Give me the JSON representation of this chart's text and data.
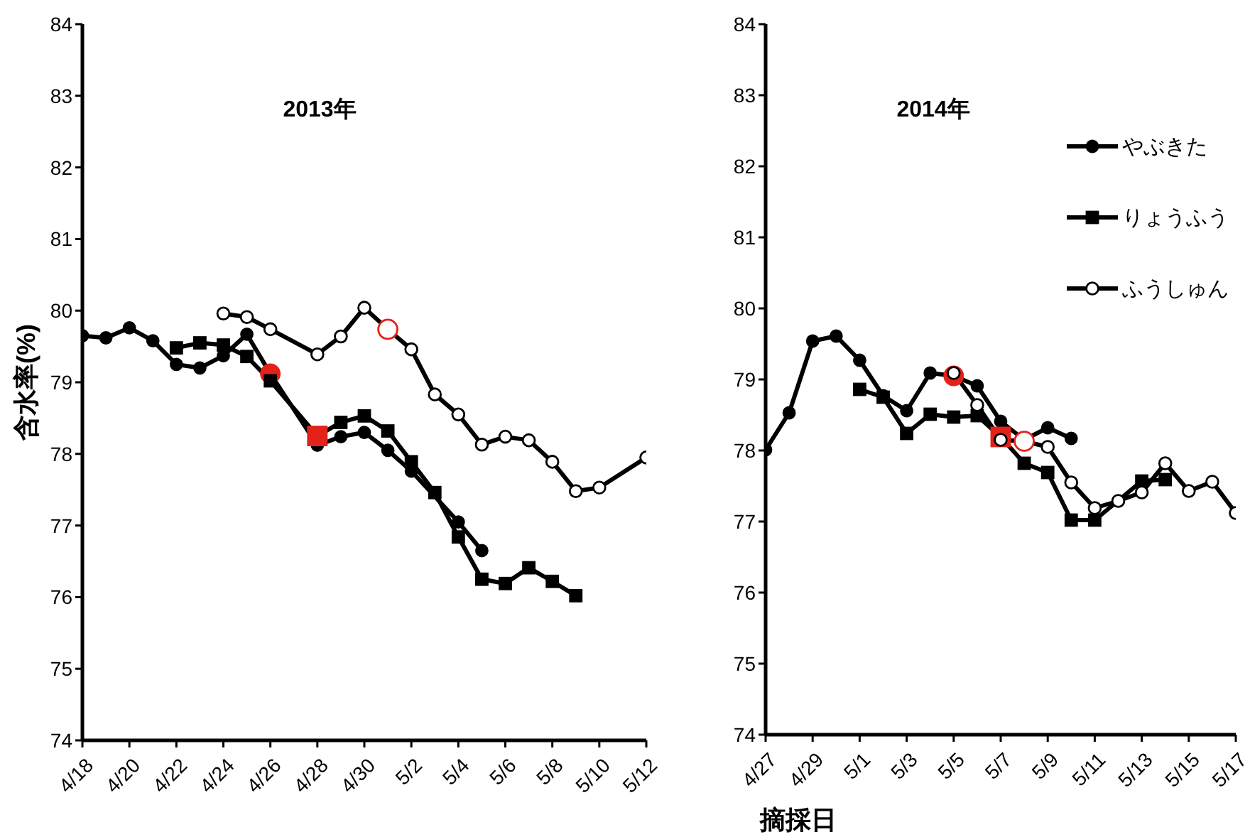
{
  "chart_data": [
    {
      "type": "line",
      "title": "2013年",
      "ylabel": "含水率(%)",
      "xlim": [
        "2013-04-18",
        "2013-05-12"
      ],
      "xticks": [
        {
          "value": "2013-04-18",
          "label": "4/18"
        },
        {
          "value": "2013-04-20",
          "label": "4/20"
        },
        {
          "value": "2013-04-22",
          "label": "4/22"
        },
        {
          "value": "2013-04-24",
          "label": "4/24"
        },
        {
          "value": "2013-04-26",
          "label": "4/26"
        },
        {
          "value": "2013-04-28",
          "label": "4/28"
        },
        {
          "value": "2013-04-30",
          "label": "4/30"
        },
        {
          "value": "2013-05-02",
          "label": "5/2"
        },
        {
          "value": "2013-05-04",
          "label": "5/4"
        },
        {
          "value": "2013-05-06",
          "label": "5/6"
        },
        {
          "value": "2013-05-08",
          "label": "5/8"
        },
        {
          "value": "2013-05-10",
          "label": "5/10"
        },
        {
          "value": "2013-05-12",
          "label": "5/12"
        }
      ],
      "ylim": [
        74,
        84
      ],
      "yticks": [
        74,
        75,
        76,
        77,
        78,
        79,
        80,
        81,
        82,
        83,
        84
      ],
      "line_style": "solid",
      "series": [
        {
          "color": "#000000",
          "marker": "circle",
          "x": [
            "2013-04-18",
            "2013-04-19",
            "2013-04-20",
            "2013-04-21",
            "2013-04-22",
            "2013-04-23",
            "2013-04-24",
            "2013-04-25",
            "2013-04-26",
            "2013-04-28",
            "2013-04-29",
            "2013-04-30",
            "2013-05-01",
            "2013-05-02",
            "2013-05-04",
            "2013-05-05"
          ],
          "values": [
            79.65,
            79.62,
            79.76,
            79.58,
            79.25,
            79.2,
            79.37,
            79.67,
            79.12,
            78.12,
            78.24,
            78.3,
            78.05,
            77.76,
            77.05,
            76.65
          ],
          "colors": [
            "#000000",
            "#000000",
            "#000000",
            "#000000",
            "#000000",
            "#000000",
            "#000000",
            "#000000",
            "#e32219",
            "#000000",
            "#000000",
            "#000000",
            "#000000",
            "#000000",
            "#000000",
            "#000000"
          ]
        },
        {
          "color": "#000000",
          "marker": "square",
          "x": [
            "2013-04-22",
            "2013-04-23",
            "2013-04-24",
            "2013-04-25",
            "2013-04-26",
            "2013-04-28",
            "2013-04-29",
            "2013-04-30",
            "2013-05-01",
            "2013-05-02",
            "2013-05-03",
            "2013-05-04",
            "2013-05-05",
            "2013-05-06",
            "2013-05-07",
            "2013-05-08",
            "2013-05-09"
          ],
          "values": [
            79.48,
            79.55,
            79.52,
            79.36,
            79.02,
            78.25,
            78.44,
            78.53,
            78.32,
            77.89,
            77.46,
            76.84,
            76.25,
            76.19,
            76.41,
            76.22,
            76.02
          ],
          "colors": [
            "#000000",
            "#000000",
            "#000000",
            "#000000",
            "#000000",
            "#e32219",
            "#000000",
            "#000000",
            "#000000",
            "#000000",
            "#000000",
            "#000000",
            "#000000",
            "#000000",
            "#000000",
            "#000000",
            "#000000"
          ]
        },
        {
          "color": "#000000",
          "marker": "circle-open",
          "x": [
            "2013-04-24",
            "2013-04-25",
            "2013-04-26",
            "2013-04-28",
            "2013-04-29",
            "2013-04-30",
            "2013-05-01",
            "2013-05-02",
            "2013-05-03",
            "2013-05-04",
            "2013-05-05",
            "2013-05-06",
            "2013-05-07",
            "2013-05-08",
            "2013-05-09",
            "2013-05-10",
            "2013-05-12"
          ],
          "values": [
            79.96,
            79.91,
            79.74,
            79.39,
            79.64,
            80.04,
            79.74,
            79.46,
            78.83,
            78.55,
            78.13,
            78.24,
            78.19,
            77.89,
            77.48,
            77.53,
            77.95
          ],
          "colors": [
            "#000000",
            "#000000",
            "#000000",
            "#000000",
            "#000000",
            "#000000",
            "#e32219",
            "#000000",
            "#000000",
            "#000000",
            "#000000",
            "#000000",
            "#000000",
            "#000000",
            "#000000",
            "#000000",
            "#000000"
          ]
        }
      ]
    },
    {
      "type": "line",
      "title": "2014年",
      "xlabel": "摘採日",
      "xlim": [
        "2014-04-27",
        "2014-05-17"
      ],
      "xticks": [
        {
          "value": "2014-04-27",
          "label": "4/27"
        },
        {
          "value": "2014-04-29",
          "label": "4/29"
        },
        {
          "value": "2014-05-01",
          "label": "5/1"
        },
        {
          "value": "2014-05-03",
          "label": "5/3"
        },
        {
          "value": "2014-05-05",
          "label": "5/5"
        },
        {
          "value": "2014-05-07",
          "label": "5/7"
        },
        {
          "value": "2014-05-09",
          "label": "5/9"
        },
        {
          "value": "2014-05-11",
          "label": "5/11"
        },
        {
          "value": "2014-05-13",
          "label": "5/13"
        },
        {
          "value": "2014-05-15",
          "label": "5/15"
        },
        {
          "value": "2014-05-17",
          "label": "5/17"
        }
      ],
      "ylim": [
        74,
        84
      ],
      "yticks": [
        74,
        75,
        76,
        77,
        78,
        79,
        80,
        81,
        82,
        83,
        84
      ],
      "legend": "top right",
      "line_style": "solid",
      "series": [
        {
          "name": "やぶきた",
          "color": "#000000",
          "marker": "circle",
          "x": [
            "2014-04-27",
            "2014-04-28",
            "2014-04-29",
            "2014-04-30",
            "2014-05-01",
            "2014-05-02",
            "2014-05-03",
            "2014-05-04",
            "2014-05-05",
            "2014-05-06",
            "2014-05-07",
            "2014-05-08",
            "2014-05-09",
            "2014-05-10"
          ],
          "values": [
            78.01,
            78.53,
            79.54,
            79.61,
            79.27,
            78.77,
            78.56,
            79.09,
            79.05,
            78.91,
            78.41,
            78.15,
            78.32,
            78.17
          ],
          "colors": [
            "#000000",
            "#000000",
            "#000000",
            "#000000",
            "#000000",
            "#000000",
            "#000000",
            "#000000",
            "#e32219",
            "#000000",
            "#000000",
            "#000000",
            "#000000",
            "#000000"
          ]
        },
        {
          "name": "りょうふう",
          "color": "#000000",
          "marker": "square",
          "x": [
            "2014-05-01",
            "2014-05-02",
            "2014-05-03",
            "2014-05-04",
            "2014-05-05",
            "2014-05-06",
            "2014-05-07",
            "2014-05-08",
            "2014-05-09",
            "2014-05-10",
            "2014-05-11",
            "2014-05-13",
            "2014-05-14"
          ],
          "values": [
            78.86,
            78.75,
            78.24,
            78.51,
            78.47,
            78.49,
            78.19,
            77.82,
            77.69,
            77.02,
            77.02,
            77.57,
            77.59
          ],
          "colors": [
            "#000000",
            "#000000",
            "#000000",
            "#000000",
            "#000000",
            "#000000",
            "#e32219",
            "#000000",
            "#000000",
            "#000000",
            "#000000",
            "#000000",
            "#000000"
          ]
        },
        {
          "name": "ふうしゅん",
          "color": "#000000",
          "marker": "circle-open",
          "x": [
            "2014-05-05",
            "2014-05-06",
            "2014-05-07",
            "2014-05-08",
            "2014-05-09",
            "2014-05-10",
            "2014-05-11",
            "2014-05-12",
            "2014-05-13",
            "2014-05-14",
            "2014-05-15",
            "2014-05-16",
            "2014-05-17"
          ],
          "values": [
            79.09,
            78.64,
            78.15,
            78.13,
            78.05,
            77.55,
            77.19,
            77.29,
            77.41,
            77.82,
            77.43,
            77.56,
            77.12
          ],
          "colors": [
            "#000000",
            "#000000",
            "#000000",
            "#e32219",
            "#000000",
            "#000000",
            "#000000",
            "#000000",
            "#000000",
            "#000000",
            "#000000",
            "#000000",
            "#000000"
          ]
        }
      ]
    }
  ]
}
